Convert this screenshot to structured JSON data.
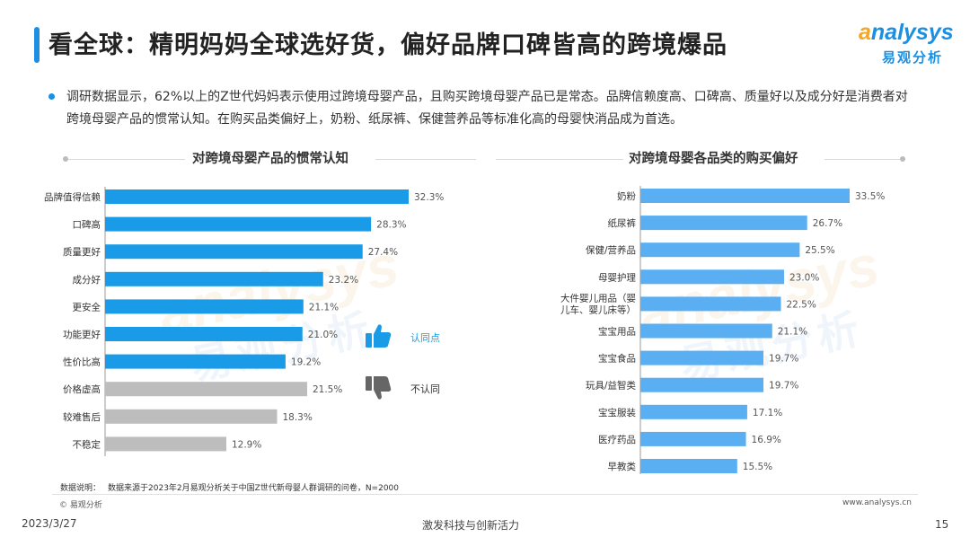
{
  "header": {
    "title": "看全球：精明妈妈全球选好货，偏好品牌口碑皆高的跨境爆品",
    "logo_en_first": "a",
    "logo_en_rest": "nalysys",
    "logo_cn": "易观分析"
  },
  "summary": "调研数据显示，62%以上的Z世代妈妈表示使用过跨境母婴产品，且购买跨境母婴产品已是常态。品牌信赖度高、口碑高、质量好以及成分好是消费者对跨境母婴产品的惯常认知。在购买品类偏好上，奶粉、纸尿裤、保健营养品等标准化高的母婴快消品成为首选。",
  "legend": {
    "agree": "认同点",
    "disagree": "不认同"
  },
  "colors": {
    "agree": "#1a9be8",
    "disagree": "#bdbdbd",
    "right": "#5aaef2"
  },
  "chart_data": [
    {
      "type": "bar",
      "orientation": "horizontal",
      "title": "对跨境母婴产品的惯常认知",
      "categories": [
        "品牌值得信赖",
        "口碑高",
        "质量更好",
        "成分好",
        "更安全",
        "功能更好",
        "性价比高",
        "价格虚高",
        "较难售后",
        "不稳定"
      ],
      "values": [
        32.3,
        28.3,
        27.4,
        23.2,
        21.1,
        21.0,
        19.2,
        21.5,
        18.3,
        12.9
      ],
      "labels": [
        "32.3%",
        "28.3%",
        "27.4%",
        "23.2%",
        "21.1%",
        "21.0%",
        "19.2%",
        "21.5%",
        "18.3%",
        "12.9%"
      ],
      "group": [
        "agree",
        "agree",
        "agree",
        "agree",
        "agree",
        "agree",
        "agree",
        "disagree",
        "disagree",
        "disagree"
      ],
      "unit": "%"
    },
    {
      "type": "bar",
      "orientation": "horizontal",
      "title": "对跨境母婴各品类的购买偏好",
      "categories": [
        "奶粉",
        "纸尿裤",
        "保健/营养品",
        "母婴护理",
        [
          "大件婴儿用品（婴",
          "儿车、婴儿床等）"
        ],
        "宝宝用品",
        "宝宝食品",
        "玩具/益智类",
        "宝宝服装",
        "医疗药品",
        "早教类"
      ],
      "values": [
        33.5,
        26.7,
        25.5,
        23.0,
        22.5,
        21.1,
        19.7,
        19.7,
        17.1,
        16.9,
        15.5
      ],
      "labels": [
        "33.5%",
        "26.7%",
        "25.5%",
        "23.0%",
        "22.5%",
        "21.1%",
        "19.7%",
        "19.7%",
        "17.1%",
        "16.9%",
        "15.5%"
      ],
      "unit": "%"
    }
  ],
  "footer": {
    "note_label": "数据说明：",
    "note_text": "数据来源于2023年2月易观分析关于中国Z世代新母婴人群调研的问卷，N=2000",
    "copyright": "© 易观分析",
    "website": "www.analysys.cn",
    "date": "2023/3/27",
    "slogan": "激发科技与创新活力",
    "page_number": "15"
  }
}
